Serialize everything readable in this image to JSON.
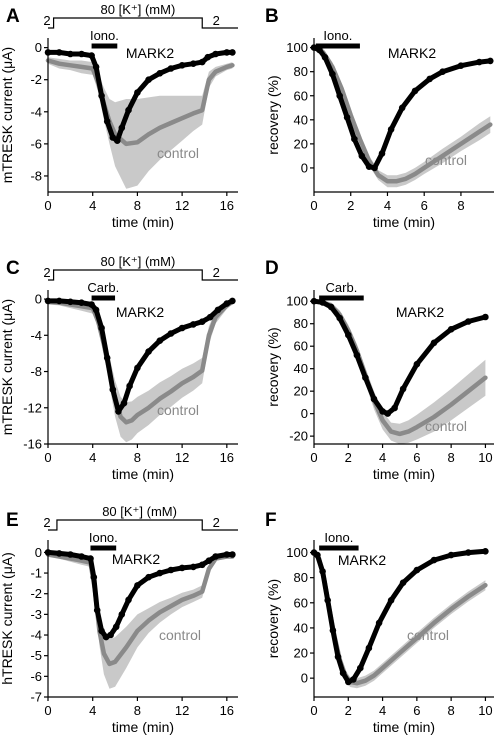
{
  "colors": {
    "mark2": "#000000",
    "control": "#8a8a8a",
    "control_band": "#c9c9c9",
    "text": "#000000"
  },
  "chart_data": [
    {
      "panel": "A",
      "type": "line",
      "xlabel": "time (min)",
      "ylabel": "mTRESK current (μA)",
      "xlim": [
        0,
        17
      ],
      "ylim": [
        -9,
        0.6
      ],
      "xticks": [
        0,
        4,
        8,
        12,
        16
      ],
      "yticks": [
        0,
        -2,
        -4,
        -6,
        -8
      ],
      "yticklabels": [
        "0",
        "-2",
        "-4",
        "-6",
        "-8"
      ],
      "drug_bar": {
        "label": "Iono.",
        "x": [
          3.9,
          6.2
        ]
      },
      "protocol": {
        "label": "80 [K⁺] (mM)",
        "left_label": "2",
        "right_label": "2",
        "x": [
          0.5,
          13.8
        ]
      },
      "series": [
        {
          "name": "MARK2",
          "style": "markers",
          "x": [
            0,
            1,
            2,
            3,
            3.9,
            4.3,
            4.8,
            5.3,
            5.8,
            6.2,
            6.6,
            7.2,
            8,
            9,
            10,
            11,
            12,
            13,
            13.8,
            14.3,
            15,
            16,
            16.5
          ],
          "values": [
            -0.3,
            -0.3,
            -0.4,
            -0.4,
            -0.5,
            -1.2,
            -3.0,
            -4.6,
            -5.6,
            -5.8,
            -5.0,
            -3.9,
            -2.8,
            -2.0,
            -1.6,
            -1.3,
            -1.1,
            -1.0,
            -0.9,
            -0.6,
            -0.4,
            -0.3,
            -0.3
          ]
        },
        {
          "name": "control",
          "style": "band",
          "x": [
            0,
            1,
            2,
            3,
            4,
            4.5,
            5,
            5.5,
            6,
            7,
            8,
            9,
            10,
            11,
            12,
            13,
            13.8,
            14.4,
            15,
            16,
            16.5
          ],
          "values": [
            -0.8,
            -1.0,
            -1.1,
            -1.2,
            -1.3,
            -2.2,
            -3.5,
            -4.6,
            -5.4,
            -6.0,
            -5.9,
            -5.4,
            -5.0,
            -4.7,
            -4.4,
            -4.1,
            -3.9,
            -2.0,
            -1.5,
            -1.2,
            -1.1
          ],
          "error": [
            0.2,
            0.3,
            0.3,
            0.4,
            0.4,
            0.6,
            1.0,
            1.4,
            2.0,
            2.8,
            2.7,
            2.3,
            2.0,
            1.7,
            1.4,
            1.1,
            0.9,
            0.5,
            0.3,
            0.2,
            0.2
          ]
        }
      ]
    },
    {
      "panel": "B",
      "type": "line",
      "xlabel": "time (min)",
      "ylabel": "recovery (%)",
      "xlim": [
        0,
        9.8
      ],
      "ylim": [
        -20,
        108
      ],
      "xticks": [
        0,
        2,
        4,
        6,
        8
      ],
      "yticks": [
        100,
        80,
        60,
        40,
        20,
        0
      ],
      "yticklabels": [
        "100",
        "80",
        "60",
        "40",
        "20",
        "0"
      ],
      "drug_bar": {
        "label": "Iono.",
        "x": [
          0.1,
          2.5
        ]
      },
      "series": [
        {
          "name": "MARK2",
          "style": "markers",
          "x": [
            0,
            0.3,
            0.6,
            1,
            1.4,
            1.8,
            2.2,
            2.6,
            3,
            3.3,
            3.7,
            4.2,
            4.8,
            5.5,
            6.3,
            7,
            8,
            9,
            9.6
          ],
          "values": [
            100,
            98,
            92,
            78,
            60,
            42,
            24,
            10,
            1,
            0,
            12,
            32,
            50,
            64,
            74,
            80,
            85,
            88,
            89
          ]
        },
        {
          "name": "control",
          "style": "band",
          "x": [
            0,
            0.5,
            1,
            1.5,
            2,
            2.5,
            3,
            3.5,
            4,
            4.5,
            5,
            5.5,
            6,
            7,
            8,
            9,
            9.6
          ],
          "values": [
            100,
            96,
            84,
            66,
            44,
            24,
            6,
            -6,
            -11,
            -11,
            -9,
            -5,
            0,
            10,
            20,
            30,
            36
          ],
          "error": [
            2,
            3,
            4,
            4,
            4,
            4,
            4,
            4,
            5,
            5,
            5,
            5,
            5,
            6,
            6,
            7,
            7
          ]
        }
      ]
    },
    {
      "panel": "C",
      "type": "line",
      "xlabel": "time (min)",
      "ylabel": "mTRESK current (μA)",
      "xlim": [
        0,
        17
      ],
      "ylim": [
        -16,
        1
      ],
      "xticks": [
        0,
        4,
        8,
        12,
        16
      ],
      "yticks": [
        0,
        -4,
        -8,
        -12,
        -16
      ],
      "yticklabels": [
        "0",
        "-4",
        "-8",
        "-12",
        "-16"
      ],
      "drug_bar": {
        "label": "Carb.",
        "x": [
          3.9,
          6.0
        ]
      },
      "protocol": {
        "label": "80 [K⁺] (mM)",
        "left_label": "2",
        "right_label": "2",
        "x": [
          0.5,
          13.8
        ]
      },
      "series": [
        {
          "name": "MARK2",
          "style": "markers",
          "x": [
            0,
            1,
            2,
            3,
            3.9,
            4.3,
            4.8,
            5.3,
            5.8,
            6.3,
            6.8,
            7.3,
            8,
            9,
            10,
            11,
            12,
            13,
            13.8,
            14.5,
            15.2,
            16,
            16.5
          ],
          "values": [
            -0.2,
            -0.2,
            -0.3,
            -0.4,
            -0.6,
            -1.2,
            -3.2,
            -6.5,
            -10,
            -12.4,
            -11.5,
            -9.6,
            -7.6,
            -5.8,
            -4.6,
            -3.8,
            -3.2,
            -2.8,
            -2.5,
            -2.0,
            -1.2,
            -0.5,
            -0.2
          ]
        },
        {
          "name": "control",
          "style": "band",
          "x": [
            0,
            1,
            2,
            3,
            4,
            4.5,
            5,
            5.5,
            6,
            6.5,
            7,
            7.5,
            8,
            9,
            10,
            11,
            12,
            13,
            13.8,
            14.4,
            15,
            16,
            16.5
          ],
          "values": [
            -0.3,
            -0.4,
            -0.6,
            -0.8,
            -1.0,
            -2.5,
            -5.0,
            -8.0,
            -11.0,
            -13.0,
            -13.6,
            -13.4,
            -12.8,
            -12.0,
            -11.0,
            -10.2,
            -9.3,
            -8.6,
            -7.9,
            -4.0,
            -2.0,
            -0.7,
            -0.3
          ],
          "error": [
            0.3,
            0.3,
            0.4,
            0.5,
            0.6,
            0.8,
            1.2,
            1.6,
            2.0,
            2.2,
            2.2,
            2.1,
            2.0,
            1.9,
            1.8,
            1.7,
            1.6,
            1.5,
            1.4,
            1.0,
            0.7,
            0.4,
            0.3
          ]
        }
      ]
    },
    {
      "panel": "D",
      "type": "line",
      "xlabel": "time (min)",
      "ylabel": "recovery (%)",
      "xlim": [
        0,
        10.5
      ],
      "ylim": [
        -27,
        110
      ],
      "xticks": [
        0,
        2,
        4,
        6,
        8,
        10
      ],
      "yticks": [
        100,
        80,
        60,
        40,
        20,
        0,
        -20
      ],
      "yticklabels": [
        "100",
        "80",
        "60",
        "40",
        "20",
        "0",
        "-20"
      ],
      "drug_bar": {
        "label": "Carb.",
        "x": [
          0.3,
          2.9
        ]
      },
      "series": [
        {
          "name": "MARK2",
          "style": "markers",
          "x": [
            0,
            0.5,
            1,
            1.5,
            2,
            2.5,
            3,
            3.5,
            4,
            4.3,
            4.7,
            5.2,
            6,
            7,
            8,
            9,
            10
          ],
          "values": [
            100,
            99,
            95,
            85,
            70,
            52,
            32,
            13,
            2,
            0,
            5,
            22,
            44,
            63,
            75,
            82,
            86
          ]
        },
        {
          "name": "control",
          "style": "band",
          "x": [
            0,
            0.5,
            1,
            1.5,
            2,
            2.5,
            3,
            3.5,
            4,
            4.5,
            5,
            5.5,
            6,
            7,
            8,
            9,
            10
          ],
          "values": [
            100,
            99,
            96,
            88,
            74,
            56,
            34,
            12,
            -6,
            -16,
            -18,
            -16,
            -12,
            -3,
            8,
            20,
            32
          ],
          "error": [
            2,
            2,
            3,
            4,
            5,
            6,
            7,
            8,
            8,
            8,
            9,
            10,
            11,
            13,
            14,
            15,
            16
          ]
        }
      ]
    },
    {
      "panel": "E",
      "type": "line",
      "xlabel": "time (min)",
      "ylabel": "hTRESK current (μA)",
      "xlim": [
        0,
        17
      ],
      "ylim": [
        -7,
        0.6
      ],
      "xticks": [
        0,
        4,
        8,
        12,
        16
      ],
      "yticks": [
        0,
        -1,
        -2,
        -3,
        -4,
        -5,
        -6,
        -7
      ],
      "yticklabels": [
        "0",
        "-1",
        "-2",
        "-3",
        "-4",
        "-5",
        "-6",
        "-7"
      ],
      "drug_bar": {
        "label": "Iono.",
        "x": [
          3.8,
          6.1
        ]
      },
      "protocol": {
        "label": "80 [K⁺] (mM)",
        "left_label": "2",
        "right_label": "2",
        "x": [
          0.8,
          13.8
        ]
      },
      "series": [
        {
          "name": "MARK2",
          "style": "markers",
          "x": [
            0,
            1,
            2,
            3,
            3.8,
            4.1,
            4.4,
            4.8,
            5.2,
            5.6,
            6.1,
            6.6,
            7.2,
            8,
            9,
            10,
            11,
            12,
            13,
            13.8,
            14.4,
            15,
            16,
            16.5
          ],
          "values": [
            0,
            -0.05,
            -0.1,
            -0.2,
            -0.3,
            -1.2,
            -2.8,
            -3.8,
            -4.1,
            -4.0,
            -3.6,
            -3.0,
            -2.3,
            -1.6,
            -1.2,
            -1.0,
            -0.85,
            -0.75,
            -0.7,
            -0.6,
            -0.4,
            -0.2,
            -0.1,
            -0.1
          ]
        },
        {
          "name": "control",
          "style": "band",
          "x": [
            0,
            1,
            2,
            3,
            3.8,
            4.2,
            4.6,
            5,
            5.5,
            6,
            7,
            8,
            9,
            10,
            11,
            12,
            13,
            13.8,
            14.4,
            15,
            16,
            16.5
          ],
          "values": [
            -0.1,
            -0.2,
            -0.3,
            -0.4,
            -0.5,
            -1.8,
            -3.8,
            -4.9,
            -5.4,
            -5.3,
            -4.6,
            -3.8,
            -3.3,
            -2.9,
            -2.6,
            -2.3,
            -2.1,
            -1.9,
            -0.8,
            -0.3,
            -0.2,
            -0.2
          ],
          "error": [
            0.1,
            0.1,
            0.15,
            0.2,
            0.2,
            0.4,
            0.7,
            1.0,
            1.2,
            1.2,
            1.0,
            0.8,
            0.6,
            0.5,
            0.4,
            0.35,
            0.3,
            0.3,
            0.2,
            0.1,
            0.1,
            0.1
          ]
        }
      ]
    },
    {
      "panel": "F",
      "type": "line",
      "xlabel": "time (min)",
      "ylabel": "recovery (%)",
      "xlim": [
        0,
        10.5
      ],
      "ylim": [
        -15,
        110
      ],
      "xticks": [
        0,
        2,
        4,
        6,
        8,
        10
      ],
      "yticks": [
        100,
        80,
        60,
        40,
        20,
        0
      ],
      "yticklabels": [
        "100",
        "80",
        "60",
        "40",
        "20",
        "0"
      ],
      "drug_bar": {
        "label": "Iono.",
        "x": [
          0.3,
          2.6
        ]
      },
      "series": [
        {
          "name": "MARK2",
          "style": "markers",
          "x": [
            0,
            0.2,
            0.5,
            0.8,
            1.1,
            1.4,
            1.7,
            2,
            2.3,
            2.7,
            3.2,
            3.8,
            4.5,
            5.2,
            6,
            7,
            8,
            9,
            10
          ],
          "values": [
            100,
            98,
            85,
            62,
            38,
            17,
            4,
            -3,
            -1,
            8,
            24,
            44,
            62,
            76,
            86,
            94,
            98,
            100,
            101
          ]
        },
        {
          "name": "control",
          "style": "band",
          "x": [
            0,
            0.3,
            0.6,
            0.9,
            1.2,
            1.5,
            1.8,
            2.1,
            2.5,
            3,
            3.5,
            4,
            5,
            6,
            7,
            8,
            9,
            10
          ],
          "values": [
            100,
            95,
            78,
            55,
            33,
            15,
            3,
            -3,
            -4,
            -2,
            2,
            8,
            20,
            32,
            44,
            55,
            65,
            74
          ],
          "error": [
            2,
            3,
            4,
            5,
            5,
            4,
            4,
            4,
            4,
            4,
            4,
            4,
            4,
            4,
            4,
            4,
            4,
            4
          ]
        }
      ]
    }
  ],
  "panel_labels": [
    {
      "letter": "A",
      "mark2": "MARK2",
      "control": "control"
    },
    {
      "letter": "B",
      "mark2": "MARK2",
      "control": "control"
    },
    {
      "letter": "C",
      "mark2": "MARK2",
      "control": "control"
    },
    {
      "letter": "D",
      "mark2": "MARK2",
      "control": "control"
    },
    {
      "letter": "E",
      "mark2": "MARK2",
      "control": "control"
    },
    {
      "letter": "F",
      "mark2": "MARK2",
      "control": "control"
    }
  ]
}
